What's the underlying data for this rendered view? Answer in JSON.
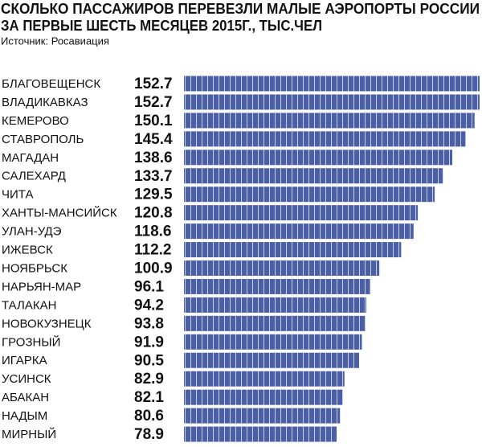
{
  "chart_data": {
    "type": "bar",
    "orientation": "horizontal",
    "title": [
      "СКОЛЬКО ПАССАЖИРОВ ПЕРЕВЕЗЛИ МАЛЫЕ АЭРОПОРТЫ РОССИИ",
      "ЗА ПЕРВЫЕ ШЕСТЬ МЕСЯЦЕВ 2015Г., ТЫС.ЧЕЛ"
    ],
    "source": "Источник: Росавиация",
    "categories": [
      "БЛАГОВЕЩЕНСК",
      "ВЛАДИКАВКАЗ",
      "КЕМЕРОВО",
      "СТАВРОПОЛЬ",
      "МАГАДАН",
      "САЛЕХАРД",
      "ЧИТА",
      "ХАНТЫ-МАНСИЙСК",
      "УЛАН-УДЭ",
      "ИЖЕВСК",
      "НОЯБРЬСК",
      "НАРЬЯН-МАР",
      "ТАЛАКАН",
      "НОВОКУЗНЕЦК",
      "ГРОЗНЫЙ",
      "ИГАРКА",
      "УСИНСК",
      "АБАКАН",
      "НАДЫМ",
      "МИРНЫЙ"
    ],
    "values": [
      152.7,
      152.7,
      150.1,
      145.4,
      138.6,
      133.7,
      129.5,
      120.8,
      118.6,
      112.2,
      100.9,
      96.1,
      94.2,
      93.8,
      91.9,
      90.5,
      82.9,
      82.1,
      80.6,
      78.9
    ],
    "color": "#4a5fa6"
  }
}
